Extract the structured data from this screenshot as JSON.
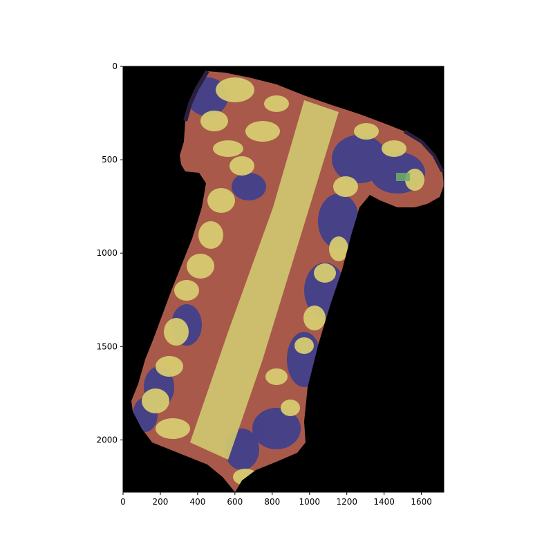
{
  "figure": {
    "background_color": "#ffffff",
    "image_background_color": "#000000",
    "axes": {
      "x_ticks": [
        0,
        200,
        400,
        600,
        800,
        1000,
        1200,
        1400,
        1600
      ],
      "y_ticks": [
        0,
        500,
        1000,
        1500,
        2000
      ],
      "x_range": [
        0,
        1720
      ],
      "y_range": [
        2280,
        0
      ]
    },
    "overlay_colors": {
      "tissue_red": "#b05a4a",
      "nuclei_blue": "#3a3f8c",
      "tissue_yellow": "#d7cf72",
      "dark_purple": "#2a1f3f",
      "green_patch": "#6fae6a"
    }
  }
}
